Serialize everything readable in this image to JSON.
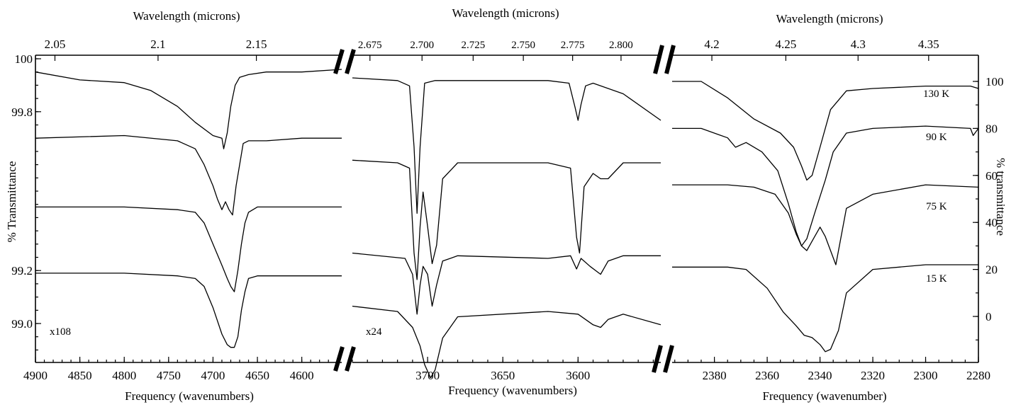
{
  "chart_data": [
    {
      "type": "line",
      "panel": "left",
      "top_axis_label": "Wavelength (microns)",
      "bottom_axis_label": "Frequency (wavenumbers)",
      "left_axis_label": "% Transmittance",
      "multiplier": "x108",
      "xlim": [
        4900,
        4555
      ],
      "ylim": [
        98.88,
        100.0
      ],
      "x_ticks": [
        4900,
        4850,
        4800,
        4750,
        4700,
        4650,
        4600
      ],
      "y_ticks": [
        99.0,
        99.2,
        99.8,
        100
      ],
      "top_ticks": [
        2.05,
        2.1,
        2.15
      ],
      "series": [
        {
          "label": "130 K",
          "x": [
            4900,
            4850,
            4800,
            4770,
            4740,
            4720,
            4700,
            4690,
            4688,
            4684,
            4680,
            4675,
            4670,
            4660,
            4640,
            4600,
            4555
          ],
          "y": [
            99.95,
            99.92,
            99.91,
            99.88,
            99.82,
            99.76,
            99.71,
            99.7,
            99.66,
            99.72,
            99.82,
            99.9,
            99.93,
            99.94,
            99.95,
            99.95,
            99.96
          ]
        },
        {
          "label": "90 K",
          "x": [
            4900,
            4800,
            4740,
            4720,
            4710,
            4700,
            4695,
            4690,
            4686,
            4682,
            4678,
            4674,
            4670,
            4666,
            4660,
            4640,
            4600,
            4555
          ],
          "y": [
            99.7,
            99.71,
            99.69,
            99.66,
            99.6,
            99.52,
            99.47,
            99.43,
            99.46,
            99.43,
            99.41,
            99.52,
            99.6,
            99.68,
            99.69,
            99.69,
            99.7,
            99.7
          ]
        },
        {
          "label": "75 K",
          "x": [
            4900,
            4800,
            4740,
            4720,
            4710,
            4700,
            4690,
            4684,
            4680,
            4676,
            4672,
            4668,
            4664,
            4660,
            4650,
            4620,
            4600,
            4555
          ],
          "y": [
            99.44,
            99.44,
            99.43,
            99.42,
            99.38,
            99.3,
            99.22,
            99.17,
            99.14,
            99.12,
            99.2,
            99.3,
            99.38,
            99.42,
            99.44,
            99.44,
            99.44,
            99.44
          ]
        },
        {
          "label": "15 K",
          "x": [
            4900,
            4800,
            4740,
            4720,
            4710,
            4700,
            4690,
            4684,
            4680,
            4676,
            4672,
            4668,
            4664,
            4660,
            4650,
            4620,
            4600,
            4555
          ],
          "y": [
            99.19,
            99.19,
            99.18,
            99.17,
            99.14,
            99.06,
            98.96,
            98.92,
            98.91,
            98.91,
            98.95,
            99.05,
            99.12,
            99.17,
            99.18,
            99.18,
            99.18,
            99.18
          ]
        }
      ]
    },
    {
      "type": "line",
      "panel": "middle",
      "top_axis_label": "Wavelength (microns)",
      "bottom_axis_label": "Frequency (wavenumbers)",
      "multiplier": "x24",
      "xlim": [
        3750,
        3545
      ],
      "x_ticks": [
        3700,
        3650,
        3600
      ],
      "top_ticks": [
        2.675,
        2.7,
        2.725,
        2.75,
        2.775,
        2.8
      ],
      "top_tick_labels": [
        "2.675",
        "2.700",
        "2.725",
        "2.750",
        "2.775",
        "2.800"
      ],
      "series": [
        {
          "label": "130 K",
          "x": [
            3750,
            3720,
            3712,
            3709,
            3707,
            3705,
            3702,
            3695,
            3660,
            3620,
            3606,
            3602,
            3600,
            3598,
            3595,
            3590,
            3570,
            3545
          ],
          "y": [
            0.96,
            0.95,
            0.93,
            0.7,
            0.45,
            0.7,
            0.94,
            0.95,
            0.95,
            0.95,
            0.94,
            0.85,
            0.8,
            0.86,
            0.93,
            0.94,
            0.9,
            0.8
          ]
        },
        {
          "label": "90 K",
          "x": [
            3750,
            3720,
            3712,
            3709,
            3707,
            3705,
            3703,
            3700,
            3697,
            3694,
            3690,
            3680,
            3620,
            3605,
            3601,
            3599,
            3596,
            3590,
            3585,
            3580,
            3570,
            3545
          ],
          "y": [
            0.65,
            0.64,
            0.62,
            0.3,
            0.2,
            0.4,
            0.53,
            0.4,
            0.26,
            0.33,
            0.58,
            0.64,
            0.64,
            0.62,
            0.36,
            0.3,
            0.55,
            0.6,
            0.58,
            0.58,
            0.64,
            0.64
          ]
        },
        {
          "label": "75 K",
          "x": [
            3750,
            3715,
            3710,
            3707,
            3705,
            3703,
            3700,
            3697,
            3694,
            3690,
            3680,
            3620,
            3605,
            3601,
            3598,
            3592,
            3585,
            3580,
            3570,
            3545
          ],
          "y": [
            0.3,
            0.28,
            0.22,
            0.07,
            0.18,
            0.25,
            0.22,
            0.1,
            0.18,
            0.27,
            0.29,
            0.28,
            0.29,
            0.24,
            0.28,
            0.25,
            0.22,
            0.27,
            0.29,
            0.29
          ]
        },
        {
          "label": "15 K",
          "x": [
            3750,
            3720,
            3710,
            3705,
            3702,
            3698,
            3695,
            3690,
            3680,
            3620,
            3600,
            3590,
            3585,
            3580,
            3570,
            3545
          ],
          "y": [
            0.1,
            0.08,
            0.02,
            -0.05,
            -0.12,
            -0.17,
            -0.14,
            -0.02,
            0.06,
            0.08,
            0.07,
            0.03,
            0.02,
            0.05,
            0.07,
            0.03
          ]
        }
      ]
    },
    {
      "type": "line",
      "panel": "right",
      "top_axis_label": "Wavelength (microns)",
      "bottom_axis_label": "Frequency (wavenumber)",
      "right_axis_label": "% transmittance",
      "xlim": [
        2396,
        2280
      ],
      "ylim": [
        -18,
        108
      ],
      "x_ticks": [
        2380,
        2360,
        2340,
        2320,
        2300,
        2280
      ],
      "y_ticks": [
        0,
        20,
        40,
        60,
        80,
        100
      ],
      "top_ticks": [
        4.2,
        4.25,
        4.3,
        4.35
      ],
      "top_tick_labels": [
        "4.2",
        "4.25",
        "4.3",
        "4.35"
      ],
      "series": [
        {
          "label": "130 K",
          "x": [
            2396,
            2385,
            2375,
            2365,
            2355,
            2350,
            2347,
            2345,
            2343,
            2340,
            2336,
            2330,
            2320,
            2300,
            2283,
            2280
          ],
          "y": [
            100,
            100,
            93,
            84,
            78,
            72,
            64,
            58,
            60,
            72,
            88,
            96,
            97,
            98,
            98,
            97
          ]
        },
        {
          "label": "90 K",
          "x": [
            2396,
            2385,
            2375,
            2372,
            2368,
            2362,
            2356,
            2352,
            2349,
            2347,
            2345,
            2342,
            2338,
            2335,
            2330,
            2320,
            2300,
            2283,
            2282,
            2280
          ],
          "y": [
            80,
            80,
            76,
            72,
            74,
            70,
            62,
            48,
            36,
            30,
            33,
            44,
            58,
            70,
            78,
            80,
            81,
            80,
            77,
            80
          ]
        },
        {
          "label": "75 K",
          "x": [
            2396,
            2385,
            2375,
            2365,
            2357,
            2352,
            2349,
            2347,
            2345,
            2342,
            2340,
            2338,
            2334,
            2330,
            2320,
            2300,
            2280
          ],
          "y": [
            56,
            56,
            56,
            55,
            52,
            44,
            35,
            30,
            28,
            34,
            38,
            34,
            22,
            46,
            52,
            56,
            55
          ]
        },
        {
          "label": "15 K",
          "x": [
            2396,
            2385,
            2375,
            2368,
            2360,
            2354,
            2349,
            2346,
            2343,
            2340,
            2338,
            2336,
            2333,
            2330,
            2320,
            2300,
            2280
          ],
          "y": [
            21,
            21,
            21,
            20,
            12,
            2,
            -4,
            -8,
            -9,
            -12,
            -15,
            -14,
            -6,
            10,
            20,
            22,
            22
          ]
        }
      ]
    }
  ]
}
